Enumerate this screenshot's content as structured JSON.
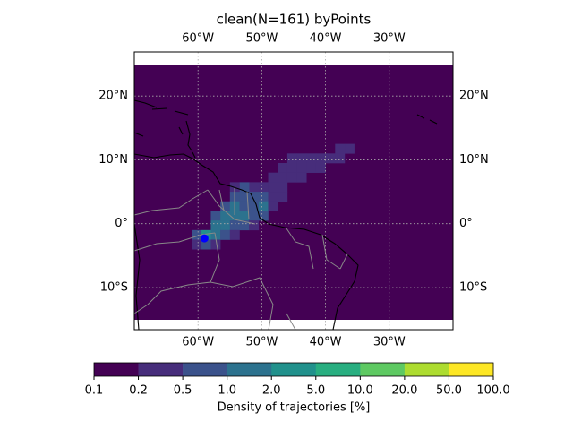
{
  "chart_data": {
    "type": "map_density",
    "title": "clean(N=161) byPoints",
    "xlim": [
      -70,
      -20
    ],
    "ylim": [
      -16.6,
      26.9
    ],
    "xticks": [
      {
        "value": -60,
        "label": "60°W"
      },
      {
        "value": -50,
        "label": "50°W"
      },
      {
        "value": -40,
        "label": "40°W"
      },
      {
        "value": -30,
        "label": "30°W"
      }
    ],
    "yticks": [
      {
        "value": 20,
        "label": "20°N"
      },
      {
        "value": 10,
        "label": "10°N"
      },
      {
        "value": 0,
        "label": "0°"
      },
      {
        "value": -10,
        "label": "10°S"
      }
    ],
    "grid": true,
    "cells": {
      "lon": [
        -37,
        -38.5,
        -38.5,
        -40,
        -41.5,
        -43,
        -44.5,
        -46,
        -47.5,
        -46,
        -44.5,
        -43,
        -41.5,
        -49,
        -47.5,
        -46,
        -44.5,
        -50.5,
        -49,
        -47.5,
        -52,
        -53.5,
        -55,
        -55,
        -53.5,
        -52,
        -50.5,
        -49,
        -47.5,
        -56.5,
        -55,
        -53.5,
        -52,
        -50.5,
        -49,
        -58,
        -56.5,
        -55,
        -53.5,
        -52,
        -50.5,
        -58,
        -56.5,
        -55,
        -53.5,
        -52,
        -59.5,
        -58,
        -56.5,
        -55,
        -59.5,
        -58,
        -61,
        -61
      ],
      "lat": [
        11,
        11,
        9.5,
        9.5,
        9.5,
        9.5,
        9.5,
        9.5,
        8,
        8,
        8,
        8,
        8,
        6.5,
        6.5,
        6.5,
        6.5,
        5,
        5,
        5,
        5,
        5,
        5,
        3.5,
        3.5,
        3.5,
        3.5,
        3.5,
        3.5,
        2,
        2,
        2,
        2,
        2,
        2,
        0.5,
        0.5,
        0.5,
        0.5,
        0.5,
        0.5,
        -1,
        -1,
        -1,
        -1,
        -1,
        -2.5,
        -2.5,
        -2.5,
        -2.5,
        -4,
        -4,
        -2.5,
        -4
      ],
      "values": [
        0.3,
        0.3,
        0.3,
        0.3,
        0.3,
        0.3,
        0.3,
        0.3,
        0.3,
        0.3,
        0.3,
        0.3,
        0.3,
        0.3,
        0.3,
        0.3,
        0.3,
        0.3,
        0.3,
        0.3,
        0.3,
        0.7,
        0.3,
        0.7,
        0.7,
        0.7,
        0.7,
        0.3,
        0.3,
        0.7,
        1.5,
        0.7,
        0.7,
        1.5,
        0.3,
        0.7,
        1.5,
        1.5,
        1.5,
        0.7,
        0.7,
        1.5,
        1.5,
        0.7,
        0.7,
        0.3,
        3,
        1.5,
        0.7,
        0.3,
        0.7,
        0.3,
        0.7,
        0.3
      ]
    },
    "source": {
      "lon": -59,
      "lat": -2.3,
      "color": "#0000ff"
    },
    "colorbar": {
      "label": "Density of trajectories [%]",
      "ticks": [
        {
          "value": 0.1,
          "label": "0.1"
        },
        {
          "value": 0.2,
          "label": "0.2"
        },
        {
          "value": 0.5,
          "label": "0.5"
        },
        {
          "value": 1,
          "label": "1.0"
        },
        {
          "value": 2,
          "label": "2.0"
        },
        {
          "value": 5,
          "label": "5.0"
        },
        {
          "value": 10,
          "label": "10.0"
        },
        {
          "value": 20,
          "label": "20.0"
        },
        {
          "value": 50,
          "label": "50.0"
        },
        {
          "value": 100,
          "label": "100.0"
        }
      ],
      "colors": [
        "#440154",
        "#472d7b",
        "#3b528b",
        "#2c728e",
        "#21918c",
        "#28ae80",
        "#5ec962",
        "#addc30",
        "#fde725"
      ]
    }
  }
}
